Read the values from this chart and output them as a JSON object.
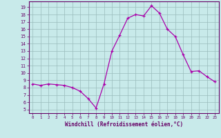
{
  "hours": [
    0,
    1,
    2,
    3,
    4,
    5,
    6,
    7,
    8,
    9,
    10,
    11,
    12,
    13,
    14,
    15,
    16,
    17,
    18,
    19,
    20,
    21,
    22,
    23
  ],
  "windchill": [
    8.5,
    8.3,
    8.5,
    8.4,
    8.3,
    8.0,
    7.5,
    6.5,
    5.2,
    8.5,
    13.0,
    15.2,
    17.5,
    18.0,
    17.8,
    19.2,
    18.2,
    16.0,
    15.0,
    12.5,
    10.2,
    10.3,
    9.5,
    8.8
  ],
  "line_color": "#aa00aa",
  "marker_color": "#aa00aa",
  "bg_color": "#c8eaea",
  "grid_color": "#99bbbb",
  "xlabel": "Windchill (Refroidissement éolien,°C)",
  "ylabel_ticks": [
    5,
    6,
    7,
    8,
    9,
    10,
    11,
    12,
    13,
    14,
    15,
    16,
    17,
    18,
    19
  ],
  "ylim": [
    4.5,
    19.8
  ],
  "xlim": [
    -0.5,
    23.5
  ],
  "axis_color": "#660066",
  "font_color": "#660066"
}
